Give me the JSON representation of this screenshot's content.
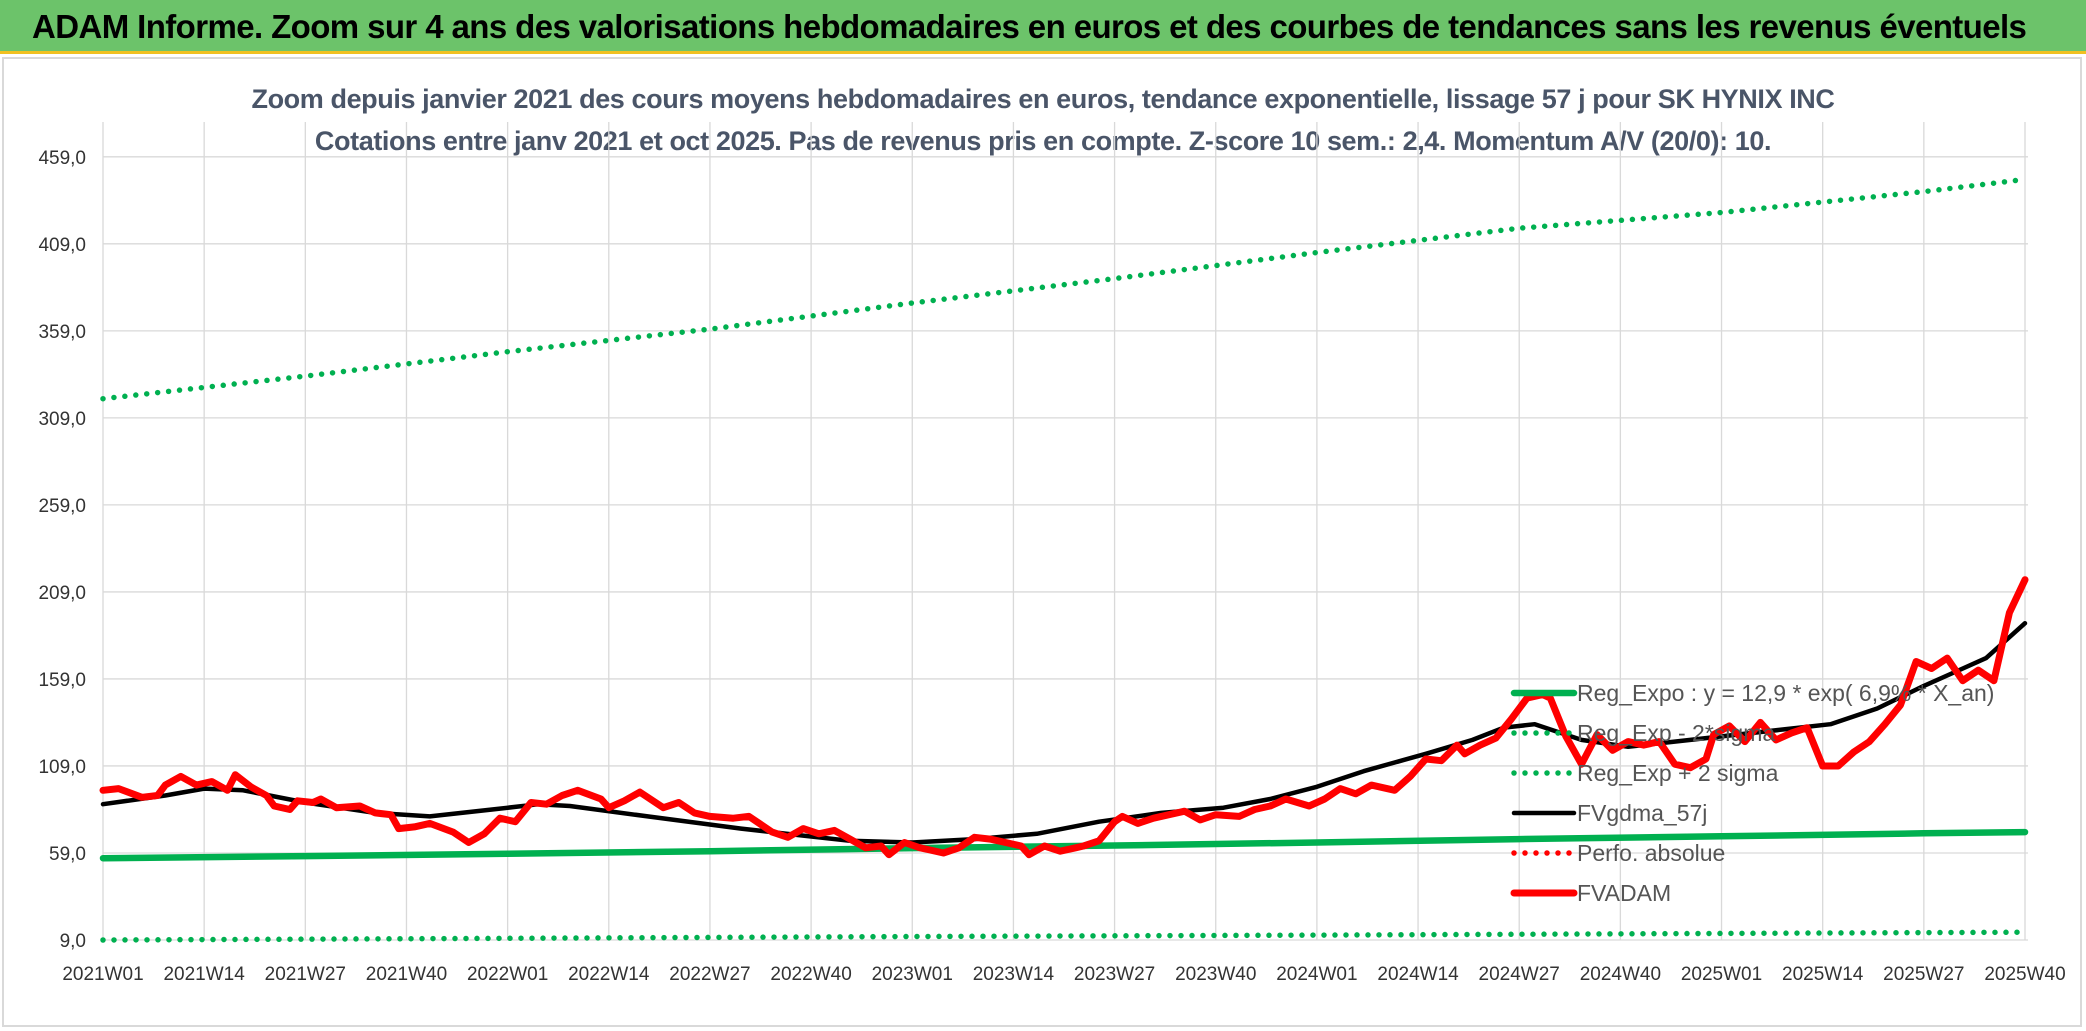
{
  "header": {
    "banner_title": "ADAM Informe. Zoom sur 4 ans des valorisations hebdomadaires en euros et des courbes de tendances sans les revenus éventuels",
    "banner_color": "#6cc36a"
  },
  "chart_data": {
    "type": "line",
    "title": "Zoom depuis janvier 2021 des cours moyens hebdomadaires en euros, tendance exponentielle, lissage 57 j pour SK HYNIX INC",
    "subtitle": "Cotations entre janv 2021 et oct 2025. Pas de revenus pris en compte. Z-score 10 sem.: 2,4. Momentum A/V (20/0): 10.",
    "ylim": [
      9,
      479
    ],
    "yticks": [
      9,
      59,
      109,
      159,
      209,
      259,
      309,
      359,
      409,
      459
    ],
    "ytick_labels": [
      "9,0",
      "59,0",
      "109,0",
      "159,0",
      "209,0",
      "259,0",
      "309,0",
      "359,0",
      "409,0",
      "459,0"
    ],
    "x_range": [
      0,
      247
    ],
    "xticks": [
      0,
      13,
      26,
      39,
      52,
      65,
      78,
      91,
      104,
      117,
      130,
      143,
      156,
      169,
      182,
      195,
      208,
      221,
      234,
      247
    ],
    "xtick_labels": [
      "2021W01",
      "2021W14",
      "2021W27",
      "2021W40",
      "2022W01",
      "2022W14",
      "2022W27",
      "2022W40",
      "2023W01",
      "2023W14",
      "2023W27",
      "2023W40",
      "2024W01",
      "2024W14",
      "2024W27",
      "2024W40",
      "2025W01",
      "2025W14",
      "2025W27",
      "2025W40"
    ],
    "grid": true,
    "legend_position": "bottom-right",
    "series": [
      {
        "name": "Reg_Expo : y = 12,9 * exp( 6,9% * X_an)",
        "style": "solid",
        "color": "#00b050",
        "points": [
          [
            0,
            56
          ],
          [
            26,
            57.2
          ],
          [
            52,
            58.5
          ],
          [
            78,
            60
          ],
          [
            104,
            61.8
          ],
          [
            130,
            63.3
          ],
          [
            156,
            65
          ],
          [
            182,
            67
          ],
          [
            208,
            68.6
          ],
          [
            234,
            70.3
          ],
          [
            247,
            71
          ]
        ]
      },
      {
        "name": "Reg_Exp - 2*sigma",
        "style": "dotted",
        "color": "#00b050",
        "points": [
          [
            0,
            9
          ],
          [
            52,
            10
          ],
          [
            104,
            11
          ],
          [
            156,
            11.8
          ],
          [
            208,
            12.8
          ],
          [
            247,
            13.5
          ]
        ]
      },
      {
        "name": "Reg_Exp + 2 sigma",
        "style": "dotted",
        "color": "#00b050",
        "points": [
          [
            0,
            320
          ],
          [
            26,
            333
          ],
          [
            52,
            347
          ],
          [
            78,
            360
          ],
          [
            104,
            375
          ],
          [
            130,
            389
          ],
          [
            156,
            404
          ],
          [
            182,
            418
          ],
          [
            208,
            427
          ],
          [
            234,
            439
          ],
          [
            247,
            446
          ]
        ]
      },
      {
        "name": "FVgdma_57j",
        "style": "solid",
        "color": "#000000",
        "points": [
          [
            0,
            87
          ],
          [
            8,
            92
          ],
          [
            13,
            96
          ],
          [
            18,
            95
          ],
          [
            26,
            88
          ],
          [
            35,
            82
          ],
          [
            42,
            80
          ],
          [
            50,
            84
          ],
          [
            56,
            87
          ],
          [
            60,
            86
          ],
          [
            70,
            80
          ],
          [
            82,
            73
          ],
          [
            90,
            69
          ],
          [
            96,
            66
          ],
          [
            104,
            65
          ],
          [
            112,
            67
          ],
          [
            120,
            70
          ],
          [
            128,
            77
          ],
          [
            136,
            82
          ],
          [
            144,
            85
          ],
          [
            150,
            90
          ],
          [
            156,
            97
          ],
          [
            162,
            106
          ],
          [
            170,
            116
          ],
          [
            176,
            124
          ],
          [
            180,
            131
          ],
          [
            184,
            133
          ],
          [
            190,
            124
          ],
          [
            196,
            120
          ],
          [
            204,
            124
          ],
          [
            210,
            127
          ],
          [
            216,
            130
          ],
          [
            222,
            133
          ],
          [
            228,
            142
          ],
          [
            234,
            155
          ],
          [
            238,
            163
          ],
          [
            242,
            171
          ],
          [
            247,
            191
          ]
        ]
      },
      {
        "name": "Perfo. absolue",
        "style": "dotted",
        "color": "#ff0000",
        "points": []
      },
      {
        "name": "FVADAM",
        "style": "solid",
        "color": "#ff0000",
        "points": [
          [
            0,
            95
          ],
          [
            2,
            96
          ],
          [
            5,
            91
          ],
          [
            7,
            92
          ],
          [
            8,
            98
          ],
          [
            10,
            103
          ],
          [
            12,
            98
          ],
          [
            14,
            100
          ],
          [
            16,
            95
          ],
          [
            17,
            104
          ],
          [
            19,
            97
          ],
          [
            21,
            92
          ],
          [
            22,
            86
          ],
          [
            24,
            84
          ],
          [
            25,
            89
          ],
          [
            27,
            88
          ],
          [
            28,
            90
          ],
          [
            30,
            85
          ],
          [
            33,
            86
          ],
          [
            35,
            82
          ],
          [
            37,
            81
          ],
          [
            38,
            73
          ],
          [
            40,
            74
          ],
          [
            42,
            76
          ],
          [
            45,
            71
          ],
          [
            47,
            65
          ],
          [
            49,
            70
          ],
          [
            51,
            79
          ],
          [
            53,
            77
          ],
          [
            55,
            88
          ],
          [
            57,
            87
          ],
          [
            59,
            92
          ],
          [
            61,
            95
          ],
          [
            64,
            90
          ],
          [
            65,
            85
          ],
          [
            67,
            89
          ],
          [
            69,
            94
          ],
          [
            72,
            85
          ],
          [
            74,
            88
          ],
          [
            76,
            82
          ],
          [
            78,
            80
          ],
          [
            81,
            79
          ],
          [
            83,
            80
          ],
          [
            86,
            71
          ],
          [
            88,
            68
          ],
          [
            90,
            73
          ],
          [
            92,
            70
          ],
          [
            94,
            72
          ],
          [
            96,
            67
          ],
          [
            98,
            62
          ],
          [
            100,
            63
          ],
          [
            101,
            58
          ],
          [
            103,
            65
          ],
          [
            105,
            62
          ],
          [
            106,
            61
          ],
          [
            108,
            59
          ],
          [
            110,
            62
          ],
          [
            112,
            68
          ],
          [
            114,
            67
          ],
          [
            116,
            65
          ],
          [
            118,
            63
          ],
          [
            119,
            58
          ],
          [
            121,
            63
          ],
          [
            123,
            60
          ],
          [
            125,
            62
          ],
          [
            126,
            63
          ],
          [
            128,
            66
          ],
          [
            130,
            77
          ],
          [
            131,
            80
          ],
          [
            133,
            76
          ],
          [
            135,
            79
          ],
          [
            137,
            81
          ],
          [
            139,
            83
          ],
          [
            141,
            78
          ],
          [
            143,
            81
          ],
          [
            146,
            80
          ],
          [
            148,
            84
          ],
          [
            150,
            86
          ],
          [
            152,
            90
          ],
          [
            155,
            86
          ],
          [
            157,
            90
          ],
          [
            159,
            96
          ],
          [
            161,
            93
          ],
          [
            163,
            98
          ],
          [
            166,
            95
          ],
          [
            168,
            103
          ],
          [
            170,
            113
          ],
          [
            172,
            112
          ],
          [
            174,
            121
          ],
          [
            175,
            116
          ],
          [
            177,
            121
          ],
          [
            179,
            125
          ],
          [
            181,
            136
          ],
          [
            183,
            148
          ],
          [
            185,
            150
          ],
          [
            186,
            148
          ],
          [
            188,
            126
          ],
          [
            190,
            110
          ],
          [
            192,
            127
          ],
          [
            194,
            118
          ],
          [
            196,
            123
          ],
          [
            198,
            121
          ],
          [
            200,
            123
          ],
          [
            202,
            110
          ],
          [
            204,
            108
          ],
          [
            206,
            113
          ],
          [
            207,
            127
          ],
          [
            209,
            132
          ],
          [
            211,
            123
          ],
          [
            213,
            134
          ],
          [
            215,
            124
          ],
          [
            217,
            128
          ],
          [
            219,
            131
          ],
          [
            221,
            109
          ],
          [
            223,
            109
          ],
          [
            225,
            117
          ],
          [
            227,
            123
          ],
          [
            229,
            133
          ],
          [
            231,
            144
          ],
          [
            233,
            169
          ],
          [
            235,
            165
          ],
          [
            237,
            171
          ],
          [
            239,
            158
          ],
          [
            241,
            164
          ],
          [
            243,
            158
          ],
          [
            245,
            197
          ],
          [
            247,
            216
          ]
        ]
      }
    ]
  }
}
